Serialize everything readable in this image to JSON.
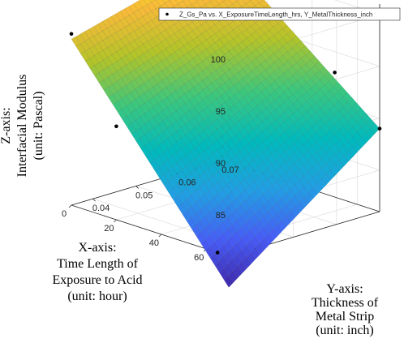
{
  "chart_data": {
    "type": "surface",
    "legend": {
      "label": "Z_Gs_Pa vs. X_ExposureTimeLength_hrs, Y_MetalThickness_inch",
      "placement": "top-right"
    },
    "x_axis": {
      "title_lines": [
        "X-axis:",
        "Time Length of",
        "Exposure to Acid",
        "(unit: hour)"
      ],
      "ticks": [
        0,
        20,
        40,
        60
      ],
      "range": [
        0,
        70
      ]
    },
    "y_axis": {
      "title_lines": [
        "Y-axis:",
        "Thickness of",
        "Metal Strip",
        "(unit: inch)"
      ],
      "ticks": [
        0.04,
        0.05,
        0.06,
        0.07
      ],
      "range": [
        0.035,
        0.07
      ]
    },
    "z_axis": {
      "title_lines": [
        "Z-axis:",
        "Interfacial Modulus",
        "(unit: Pascal)"
      ],
      "ticks": [
        85,
        90,
        95,
        100
      ],
      "range": [
        81,
        101
      ]
    },
    "grid": true,
    "colormap": "parula",
    "surface_corners": [
      {
        "x": 0,
        "y": 0.035,
        "z": 97
      },
      {
        "x": 0,
        "y": 0.07,
        "z": 101
      },
      {
        "x": 70,
        "y": 0.07,
        "z": 89
      },
      {
        "x": 70,
        "y": 0.035,
        "z": 78
      }
    ],
    "points": [
      {
        "x": 0,
        "y": 0.035,
        "z": 97.5
      },
      {
        "x": 65,
        "y": 0.035,
        "z": 81
      },
      {
        "x": 20,
        "y": 0.035,
        "z": 90
      },
      {
        "x": 50,
        "y": 0.07,
        "z": 93
      },
      {
        "x": 70,
        "y": 0.07,
        "z": 89
      }
    ]
  }
}
